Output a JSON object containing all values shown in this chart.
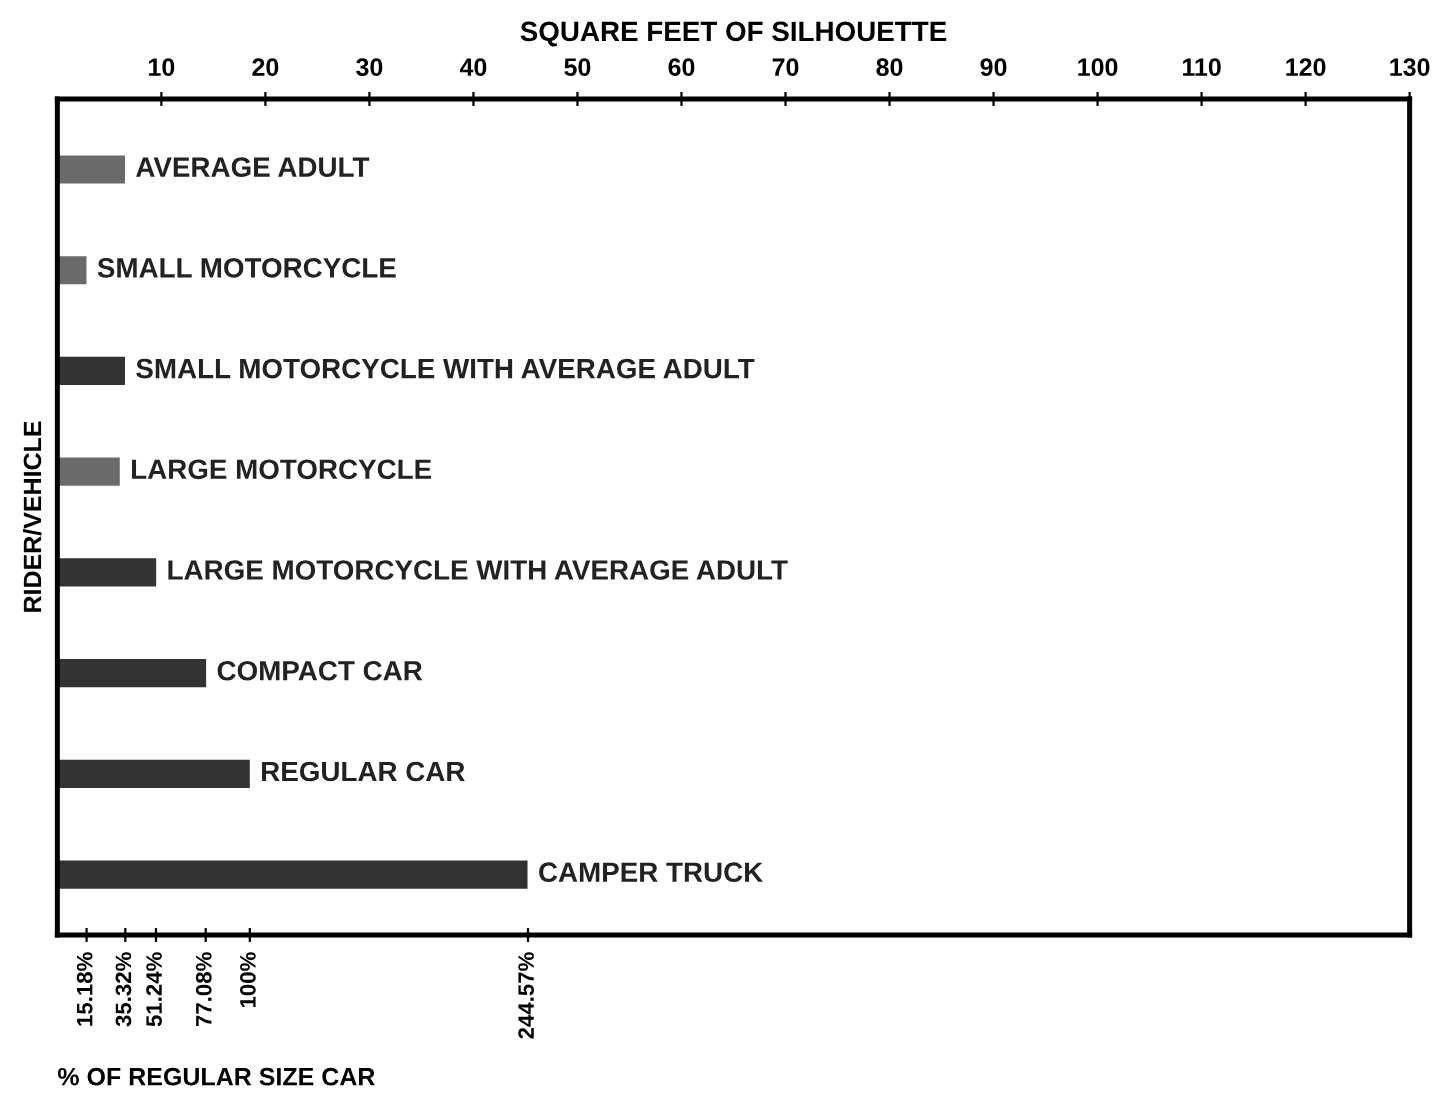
{
  "chart_data": {
    "type": "bar",
    "orientation": "horizontal",
    "xlabel": "SQUARE FEET OF SILHOUETTE",
    "ylabel": "RIDER/VEHICLE",
    "x2label": "% OF REGULAR SIZE CAR",
    "categories": [
      "AVERAGE ADULT",
      "SMALL MOTORCYCLE",
      "SMALL MOTORCYCLE WITH AVERAGE ADULT",
      "LARGE MOTORCYCLE",
      "LARGE MOTORCYCLE WITH AVERAGE ADULT",
      "COMPACT CAR",
      "REGULAR CAR",
      "CAMPER TRUCK"
    ],
    "values": [
      6.5,
      2.8,
      6.5,
      6.0,
      9.5,
      14.3,
      18.5,
      45.2
    ],
    "colors": [
      "#6a6a6a",
      "#6a6a6a",
      "#333333",
      "#6a6a6a",
      "#333333",
      "#333333",
      "#333333",
      "#333333"
    ],
    "xlim": [
      0,
      130
    ],
    "xticks": [
      10,
      20,
      30,
      40,
      50,
      60,
      70,
      80,
      90,
      100,
      110,
      120,
      130
    ],
    "x2lim": [
      0,
      702.7
    ],
    "x2ticks": [
      {
        "value": 15.18,
        "label": "15.18%"
      },
      {
        "value": 35.32,
        "label": "35.32%"
      },
      {
        "value": 51.24,
        "label": "51.24%"
      },
      {
        "value": 77.08,
        "label": "77.08%"
      },
      {
        "value": 100,
        "label": "100%"
      },
      {
        "value": 244.57,
        "label": "244.57%"
      }
    ],
    "grid": false
  }
}
